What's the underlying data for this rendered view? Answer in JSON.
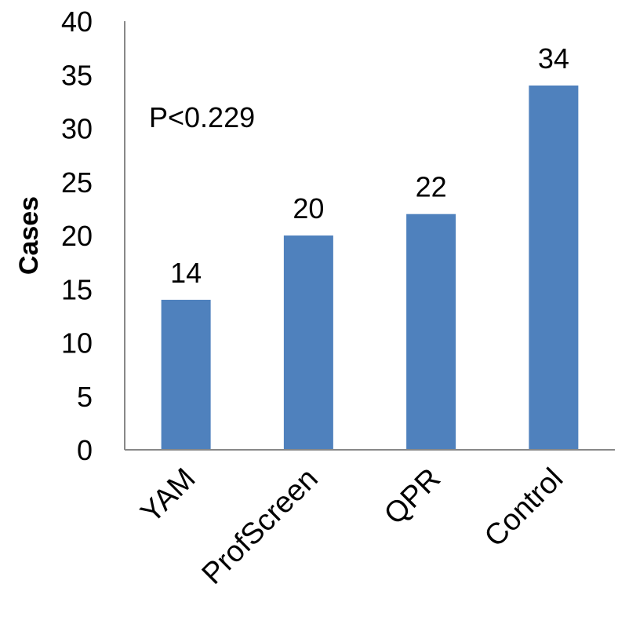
{
  "chart_data": {
    "type": "bar",
    "categories": [
      "YAM",
      "ProfScreen",
      "QPR",
      "Control"
    ],
    "values": [
      14,
      20,
      22,
      34
    ],
    "data_labels": [
      "14",
      "20",
      "22",
      "34"
    ],
    "title": "",
    "xlabel": "",
    "ylabel": "Cases",
    "ylim": [
      0,
      40
    ],
    "yticks": [
      "0",
      "5",
      "10",
      "15",
      "20",
      "25",
      "30",
      "35",
      "40"
    ],
    "annotation": "P<0.229",
    "bar_color": "#4F81BD",
    "grid": false,
    "legend": "none"
  }
}
